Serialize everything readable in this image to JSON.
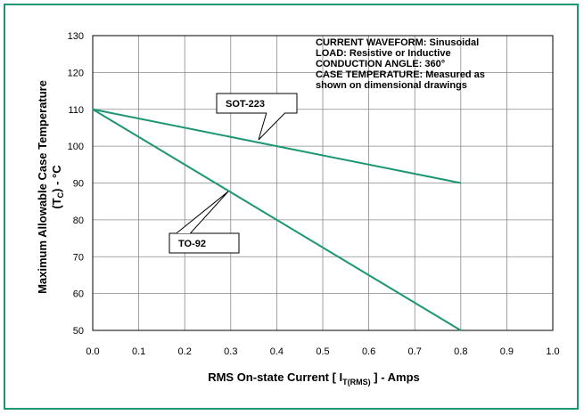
{
  "chart_data": {
    "type": "line",
    "xlabel": "RMS On-state Current [ I",
    "xlabel_sub": "T(RMS)",
    "xlabel_tail": " ] - Amps",
    "ylabel": "Maximum Allowable Case Temperature",
    "ylabel_line2": "(T",
    "ylabel_line2_sub": "C",
    "ylabel_line2_tail": ") - °C",
    "xlim": [
      0.0,
      1.0
    ],
    "ylim": [
      50,
      130
    ],
    "xticks": [
      "0.0",
      "0.1",
      "0.2",
      "0.3",
      "0.4",
      "0.5",
      "0.6",
      "0.7",
      "0.8",
      "0.9",
      "1.0"
    ],
    "yticks": [
      "50",
      "60",
      "70",
      "80",
      "90",
      "100",
      "110",
      "120",
      "130"
    ],
    "grid": true,
    "series": [
      {
        "name": "SOT-223",
        "x": [
          0.0,
          0.8
        ],
        "y": [
          110,
          90
        ]
      },
      {
        "name": "TO-92",
        "x": [
          0.0,
          0.8
        ],
        "y": [
          110,
          50
        ]
      }
    ],
    "notes": [
      "CURRENT WAVEFORM: Sinusoidal",
      "LOAD: Resistive or Inductive",
      "CONDUCTION ANGLE: 360°",
      "CASE TEMPERATURE: Measured as",
      "shown on dimensional drawings"
    ],
    "line_color": "#1e9673",
    "frame_color": "#1e9673"
  }
}
